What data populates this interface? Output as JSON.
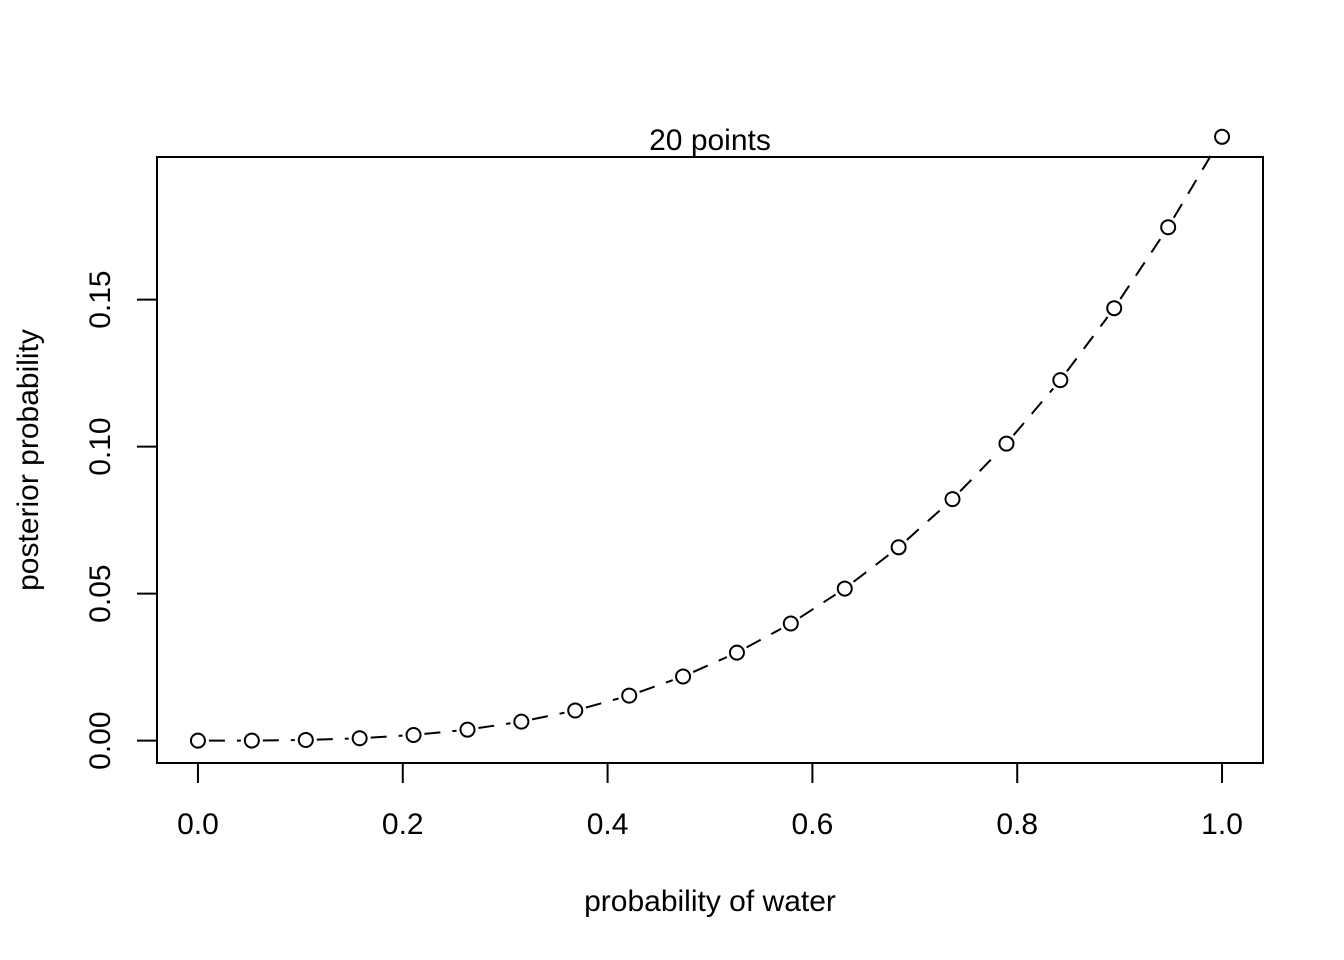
{
  "chart_data": {
    "type": "line",
    "title": "20 points",
    "xlabel": "probability of water",
    "ylabel": "posterior probability",
    "xlim": [
      -0.04,
      1.04
    ],
    "ylim": [
      -0.0076,
      0.1985
    ],
    "x_ticks": [
      0.0,
      0.2,
      0.4,
      0.6,
      0.8,
      1.0
    ],
    "x_tick_labels": [
      "0.0",
      "0.2",
      "0.4",
      "0.6",
      "0.8",
      "1.0"
    ],
    "y_ticks": [
      0.0,
      0.05,
      0.1,
      0.15
    ],
    "y_tick_labels": [
      "0.00",
      "0.05",
      "0.10",
      "0.15"
    ],
    "grid": false,
    "line_style": "dashed",
    "marker": "open-circle",
    "series": [
      {
        "x": [
          0.0,
          0.0526,
          0.1053,
          0.1579,
          0.2105,
          0.2632,
          0.3158,
          0.3684,
          0.4211,
          0.4737,
          0.5263,
          0.5789,
          0.6316,
          0.6842,
          0.7368,
          0.7895,
          0.8421,
          0.8947,
          0.9474,
          1.0
        ],
        "values": [
          0.0,
          3e-05,
          0.00024,
          0.00081,
          0.00192,
          0.00374,
          0.00647,
          0.01027,
          0.01533,
          0.02182,
          0.02994,
          0.03984,
          0.05172,
          0.06576,
          0.08214,
          0.10103,
          0.12262,
          0.14708,
          0.17461,
          0.20537
        ]
      }
    ]
  }
}
